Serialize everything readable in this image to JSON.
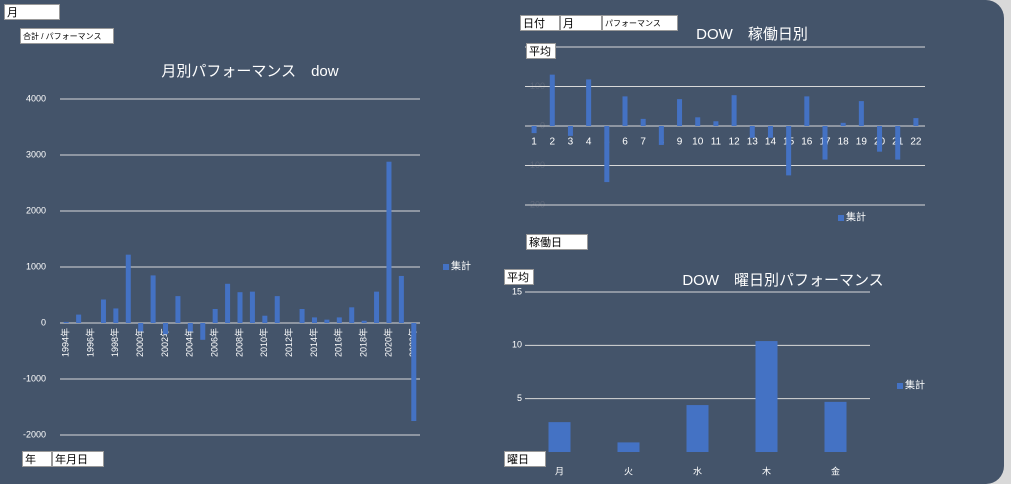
{
  "buttons": [
    "月",
    "合計 / パフォーマンス",
    "年",
    "年月日",
    "日付",
    "月",
    "パフォーマンス",
    "平均",
    "稼働日",
    "平均",
    "曜日"
  ],
  "chart_data": [
    {
      "type": "bar",
      "title": "月別パフォーマンス　dow",
      "categories": [
        "1994年",
        null,
        "1996年",
        null,
        "1998年",
        null,
        "2000年",
        null,
        "2002年",
        null,
        "2004年",
        null,
        "2006年",
        null,
        "2008年",
        null,
        "2010年",
        null,
        "2012年",
        null,
        "2014年",
        null,
        "2016年",
        null,
        "2018年",
        null,
        "2020年",
        null,
        "2022年"
      ],
      "series": [
        {
          "name": "集計",
          "color": "#4472c4",
          "values": [
            20,
            150,
            0,
            420,
            260,
            1220,
            -150,
            850,
            -200,
            480,
            -150,
            -300,
            250,
            700,
            550,
            560,
            130,
            480,
            0,
            250,
            100,
            60,
            100,
            280,
            40,
            560,
            2880,
            840,
            -1750
          ]
        }
      ],
      "ylim": [
        -2000,
        4000
      ],
      "yticks": [
        -2000,
        -1000,
        0,
        1000,
        2000,
        3000,
        4000
      ],
      "grid": true,
      "legend": "right"
    },
    {
      "type": "bar",
      "title": "DOW　稼働日別",
      "categories": [
        "1",
        "2",
        "3",
        "4",
        "5",
        "6",
        "7",
        "8",
        "9",
        "10",
        "11",
        "12",
        "13",
        "14",
        "15",
        "16",
        "17",
        "18",
        "19",
        "20",
        "21",
        "22"
      ],
      "series": [
        {
          "name": "集計",
          "color": "#4472c4",
          "values": [
            -18,
            130,
            -25,
            118,
            -142,
            75,
            18,
            -48,
            68,
            22,
            12,
            78,
            -30,
            -30,
            -125,
            75,
            -85,
            8,
            63,
            -65,
            -85,
            20
          ]
        }
      ],
      "ylim": [
        -200,
        200
      ],
      "yticks": [
        -200,
        -100,
        0,
        100,
        200
      ],
      "grid": true,
      "legend": "bottom"
    },
    {
      "type": "bar",
      "title": "DOW　曜日別パフォーマンス",
      "categories": [
        "月",
        "火",
        "水",
        "木",
        "金"
      ],
      "series": [
        {
          "name": "集計",
          "color": "#4472c4",
          "values": [
            2.8,
            0.9,
            4.4,
            10.4,
            4.7
          ]
        }
      ],
      "ylim": [
        0,
        15
      ],
      "yticks": [
        5,
        10,
        15
      ],
      "grid": true,
      "legend": "right"
    }
  ]
}
